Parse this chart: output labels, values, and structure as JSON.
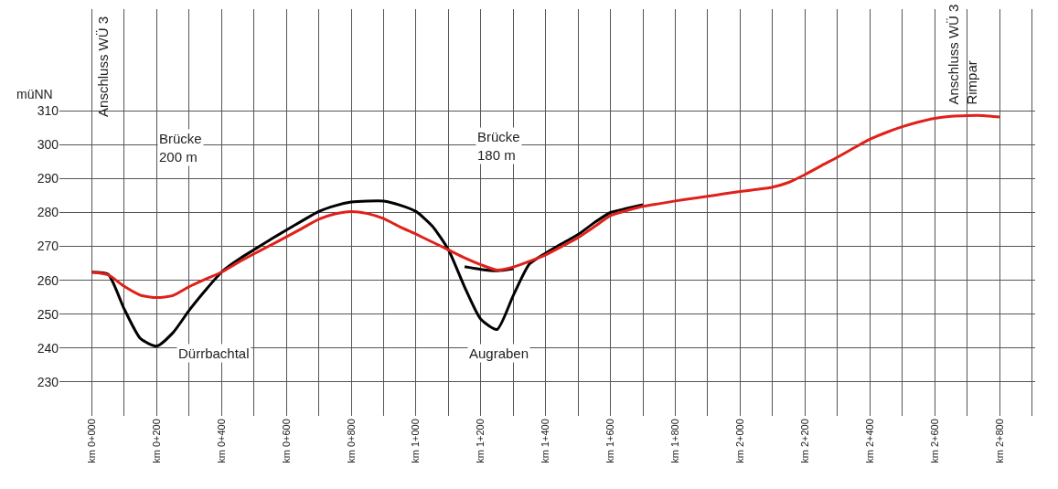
{
  "chart_data": {
    "type": "line",
    "ylabel": "müNN",
    "categories": [
      "km 0+000",
      null,
      null,
      null,
      "km 0+200",
      null,
      null,
      null,
      "km 0+400",
      null,
      null,
      null,
      "km 0+600",
      null,
      null,
      null,
      "km 0+800",
      null,
      null,
      null,
      "km 1+000",
      null,
      null,
      null,
      "km 1+200",
      null,
      null,
      null,
      "km 1+400",
      null,
      null,
      null,
      "km 1+600",
      null,
      null,
      null,
      "km 1+800",
      null,
      null,
      null,
      "km 2+000",
      null,
      null,
      null,
      "km 2+200",
      null,
      null,
      null,
      "km 2+400",
      null,
      null,
      null,
      "km 2+600",
      null,
      null,
      null,
      "km 2+800"
    ],
    "series": [
      {
        "color": "#000000",
        "values": [
          262.4,
          261.8,
          251.5,
          242.8,
          240.6,
          244.5,
          251.1,
          257,
          262.4,
          266,
          269,
          272,
          274.8,
          277.6,
          280.3,
          282,
          283.1,
          283.4,
          283.4,
          282.2,
          280.3,
          276,
          269,
          258,
          248.5,
          245.5,
          255.5,
          264.8,
          268,
          270.8,
          273.5,
          277,
          280,
          281.2,
          282.3,
          null,
          null,
          null,
          null,
          null,
          null,
          null,
          null,
          null,
          null,
          null,
          null,
          null,
          null,
          null,
          null,
          null,
          null,
          null,
          null,
          null,
          null
        ]
      },
      {
        "color": "#000000",
        "values": [
          null,
          null,
          null,
          null,
          null,
          null,
          null,
          null,
          null,
          null,
          null,
          null,
          null,
          null,
          null,
          null,
          null,
          null,
          null,
          null,
          null,
          null,
          null,
          264,
          263.2,
          262.8,
          263.4,
          null,
          null,
          null,
          null,
          null,
          null,
          null,
          null,
          null,
          null,
          null,
          null,
          null,
          null,
          null,
          null,
          null,
          null,
          null,
          null,
          null,
          null,
          null,
          null,
          null,
          null,
          null,
          null,
          null,
          null
        ]
      },
      {
        "color": "#e0201a",
        "values": [
          262.4,
          261.6,
          258.2,
          255.6,
          254.9,
          255.5,
          258.1,
          260.3,
          262.4,
          265.2,
          267.8,
          270.3,
          272.8,
          275.4,
          278,
          279.6,
          280.3,
          279.7,
          278.2,
          275.8,
          273.6,
          271.3,
          269,
          266.6,
          264.6,
          263,
          263.9,
          265.6,
          267.5,
          270,
          272.6,
          275.8,
          279.1,
          280.6,
          281.8,
          282.6,
          283.4,
          284.1,
          284.8,
          285.5,
          286.2,
          286.8,
          287.5,
          288.9,
          291.2,
          293.8,
          296.3,
          299,
          301.6,
          303.6,
          305.3,
          306.7,
          307.8,
          308.4,
          308.6,
          308.6,
          308.2
        ]
      }
    ],
    "ylim": [
      220,
      340
    ],
    "yticks": [
      230,
      240,
      250,
      260,
      270,
      280,
      290,
      300,
      310
    ],
    "grid": true,
    "marker": "none",
    "line_style": "solid",
    "annotations": [
      "Anschluss WÜ 3",
      "Anschluss WÜ 3\nRimpar",
      "Brücke\n200 m",
      "Brücke\n180 m",
      "Dürrbachtal",
      "Augraben"
    ]
  }
}
